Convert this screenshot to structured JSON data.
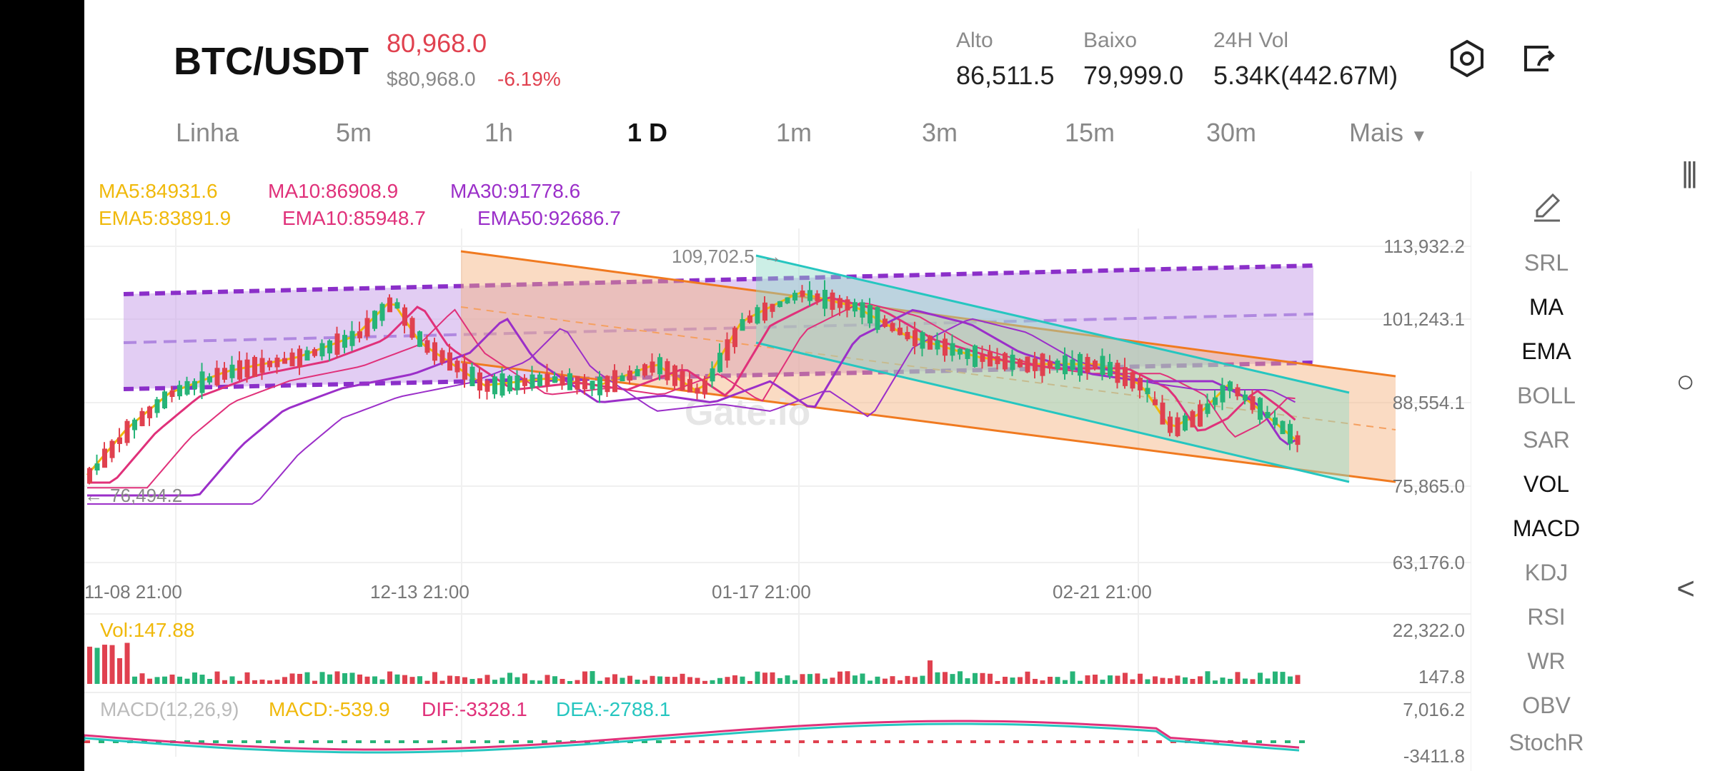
{
  "header": {
    "pair": "BTC/USDT",
    "price": "80,968.0",
    "sub_price": "$80,968.0",
    "change": "-6.19%",
    "stats": [
      {
        "label": "Alto",
        "value": "86,511.5"
      },
      {
        "label": "Baixo",
        "value": "79,999.0"
      },
      {
        "label": "24H Vol",
        "value": "5.34K(442.67M)"
      }
    ]
  },
  "tabs": [
    "Linha",
    "5m",
    "1h",
    "1 D",
    "1m",
    "3m",
    "15m",
    "30m",
    "Mais"
  ],
  "active_tab": "1 D",
  "legend": {
    "ma5": "MA5:84931.6",
    "ma10": "MA10:86908.9",
    "ma30": "MA30:91778.6",
    "ema5": "EMA5:83891.9",
    "ema10": "EMA10:85948.7",
    "ema50": "EMA50:92686.7"
  },
  "colors": {
    "up": "#27b478",
    "down": "#e0414f",
    "ma5": "#f0b90b",
    "ma10": "#e0317a",
    "ma30": "#9b2fc9",
    "teal": "#26c6c0"
  },
  "price_axis": [
    "113,932.2",
    "101,243.1",
    "88,554.1",
    "75,865.0",
    "63,176.0"
  ],
  "time_axis": [
    "11-08 21:00",
    "12-13 21:00",
    "01-17 21:00",
    "02-21 21:00"
  ],
  "annotations": {
    "high": "109,702.5",
    "low": "76,494.2",
    "watermark": "Gate.io"
  },
  "volume": {
    "label": "Vol:147.88",
    "axis_top": "22,322.0",
    "axis_bottom": "147.8"
  },
  "macd": {
    "params": "MACD(12,26,9)",
    "macd": "MACD:-539.9",
    "dif": "DIF:-3328.1",
    "dea": "DEA:-2788.1",
    "axis_top": "7,016.2",
    "axis_bottom": "-3411.8"
  },
  "indicators": [
    {
      "label": "SRL",
      "on": false
    },
    {
      "label": "MA",
      "on": true
    },
    {
      "label": "EMA",
      "on": true
    },
    {
      "label": "BOLL",
      "on": false
    },
    {
      "label": "SAR",
      "on": false
    },
    {
      "label": "VOL",
      "on": true
    },
    {
      "label": "MACD",
      "on": true
    },
    {
      "label": "KDJ",
      "on": false
    },
    {
      "label": "RSI",
      "on": false
    },
    {
      "label": "WR",
      "on": false
    },
    {
      "label": "OBV",
      "on": false
    },
    {
      "label": "StochR",
      "on": false
    }
  ],
  "icons": {
    "settings": "hexagon-settings-icon",
    "share": "share-icon",
    "draw": "pencil-icon"
  }
}
